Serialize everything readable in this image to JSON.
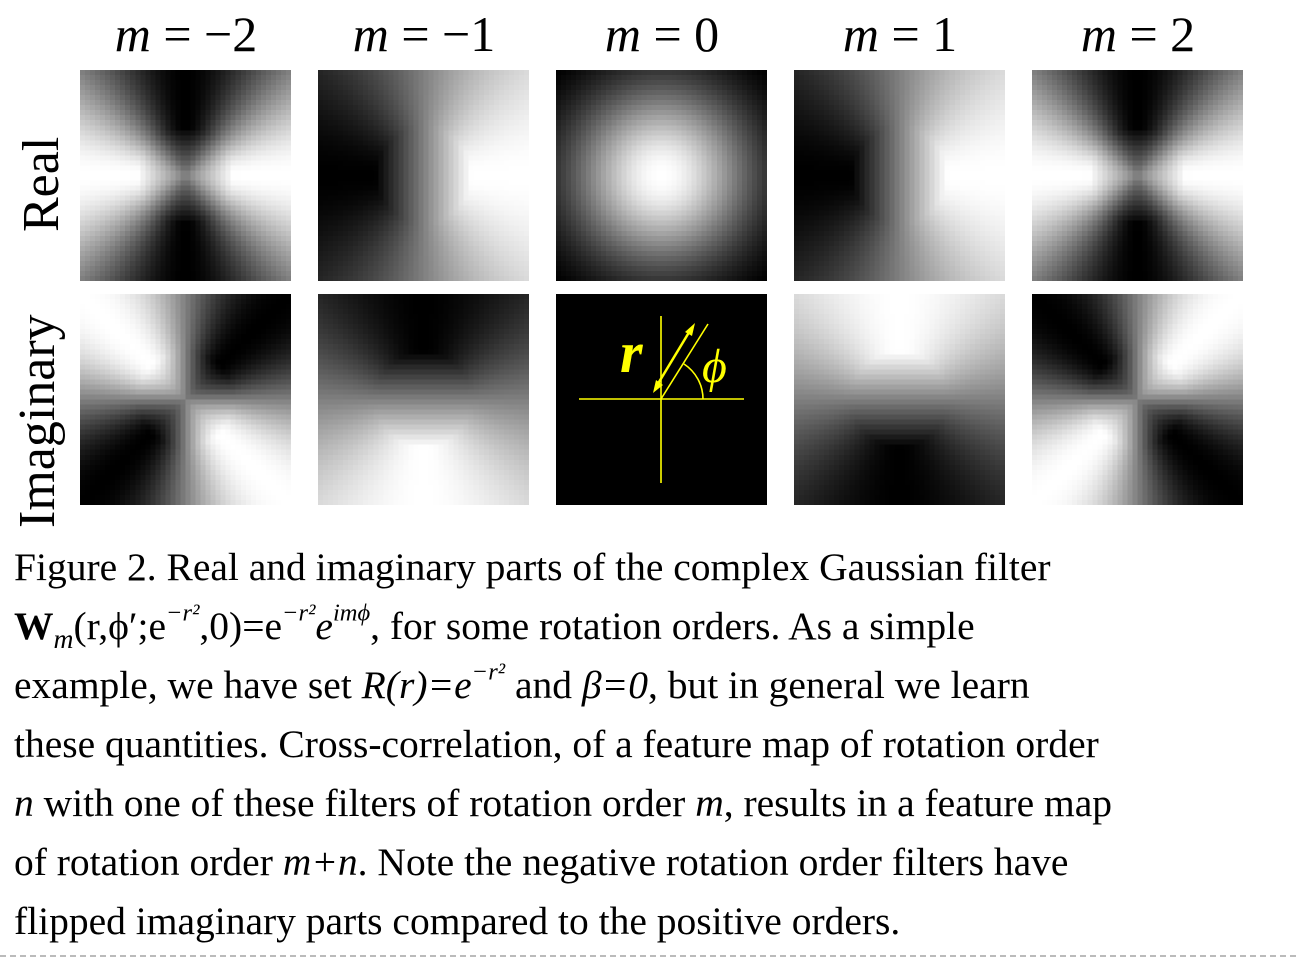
{
  "figure": {
    "column_headers": [
      {
        "var": "m",
        "op": "=",
        "val": "−2"
      },
      {
        "var": "m",
        "op": "=",
        "val": "−1"
      },
      {
        "var": "m",
        "op": "=",
        "val": "0"
      },
      {
        "var": "m",
        "op": "=",
        "val": "1"
      },
      {
        "var": "m",
        "op": "=",
        "val": "2"
      }
    ],
    "row_labels": [
      "Real",
      "Imaginary"
    ],
    "panels": {
      "real": [
        {
          "m": -2,
          "kind": "angular",
          "part": "real"
        },
        {
          "m": -1,
          "kind": "angular",
          "part": "real"
        },
        {
          "m": 0,
          "kind": "gaussian"
        },
        {
          "m": 1,
          "kind": "angular",
          "part": "real"
        },
        {
          "m": 2,
          "kind": "angular",
          "part": "real"
        }
      ],
      "imaginary": [
        {
          "m": -2,
          "kind": "angular",
          "part": "imag"
        },
        {
          "m": -1,
          "kind": "angular",
          "part": "imag"
        },
        {
          "m": 0,
          "kind": "diagram"
        },
        {
          "m": 1,
          "kind": "angular",
          "part": "imag"
        },
        {
          "m": 2,
          "kind": "angular",
          "part": "imag"
        }
      ]
    },
    "diagram": {
      "r_label": "r",
      "phi_label": "ϕ",
      "color": "#ffff00"
    }
  },
  "caption": {
    "l1": "Figure 2. Real and imaginary parts of the complex Gaussian filter",
    "l2_W": "W",
    "l2_sub": "m",
    "l2_a": "(r,ϕ′;e",
    "l2_sup1": "−r²",
    "l2_b": ",0)=e",
    "l2_sup2": "−r²",
    "l2_c": "e",
    "l2_sup3": "imϕ",
    "l2_d": ", for some rotation orders. As a simple",
    "l3_a": "example, we have set ",
    "l3_R": "R(r)=e",
    "l3_sup": "−r²",
    "l3_b": " and ",
    "l3_beta": "β=0",
    "l3_c": ", but in general we learn",
    "l4": "these quantities. Cross-correlation, of a feature map of rotation order",
    "l5_n": "n",
    "l5_a": " with one of these filters of rotation order ",
    "l5_m": "m",
    "l5_b": ", results in a feature map",
    "l6_a": "of rotation order ",
    "l6_mn": "m+n",
    "l6_b": ". Note the negative rotation order filters have",
    "l7": "flipped imaginary parts compared to the positive orders."
  }
}
